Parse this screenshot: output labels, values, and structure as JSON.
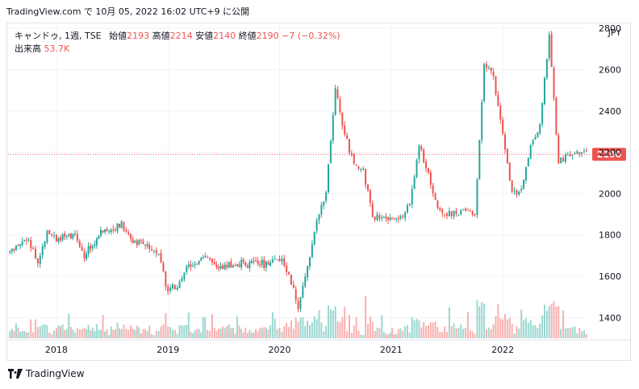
{
  "caption": "TradingView.com で 10月 05, 2022 16:02 UTC+9 に公開",
  "legend": {
    "title": "キャンドゥ, 1週, TSE",
    "open_label": "始値",
    "open": "2193",
    "high_label": "高値",
    "high": "2214",
    "low_label": "安値",
    "low": "2140",
    "close_label": "終値",
    "close": "2190",
    "change": "−7 (−0.32%)",
    "volume_label": "出来高",
    "volume": "53.7K"
  },
  "footer": {
    "brand": "TradingView"
  },
  "colors": {
    "up": "#26a69a",
    "down": "#ef5350",
    "grid": "#f0f3fa",
    "price_line": "#ef5350"
  },
  "chart_data": {
    "type": "candlestick",
    "y_unit": "JPY",
    "ylim": [
      1300,
      2820
    ],
    "y_ticks": [
      "1400",
      "1600",
      "1800",
      "2000",
      "2200",
      "2400",
      "2600",
      "2800"
    ],
    "x_ticks": [
      "2018",
      "2019",
      "2020",
      "2021",
      "2022"
    ],
    "last_price": "2190",
    "grid": true,
    "anchors": [
      [
        "2017-08",
        1720
      ],
      [
        "2017-10",
        1780
      ],
      [
        "2017-11",
        1660
      ],
      [
        "2017-12",
        1820
      ],
      [
        "2018-01",
        1780
      ],
      [
        "2018-03",
        1800
      ],
      [
        "2018-04",
        1700
      ],
      [
        "2018-06",
        1820
      ],
      [
        "2018-08",
        1850
      ],
      [
        "2018-09",
        1780
      ],
      [
        "2018-11",
        1740
      ],
      [
        "2018-12",
        1700
      ],
      [
        "2019-01",
        1530
      ],
      [
        "2019-02",
        1550
      ],
      [
        "2019-03",
        1640
      ],
      [
        "2019-05",
        1700
      ],
      [
        "2019-06",
        1640
      ],
      [
        "2019-08",
        1650
      ],
      [
        "2019-10",
        1670
      ],
      [
        "2019-12",
        1660
      ],
      [
        "2020-01",
        1680
      ],
      [
        "2020-02",
        1620
      ],
      [
        "2020-03",
        1440
      ],
      [
        "2020-04",
        1650
      ],
      [
        "2020-05",
        1880
      ],
      [
        "2020-06",
        2000
      ],
      [
        "2020-07",
        2500
      ],
      [
        "2020-08",
        2280
      ],
      [
        "2020-09",
        2150
      ],
      [
        "2020-10",
        2100
      ],
      [
        "2020-11",
        1900
      ],
      [
        "2020-12",
        1880
      ],
      [
        "2021-02",
        1880
      ],
      [
        "2021-03",
        1950
      ],
      [
        "2021-04",
        2230
      ],
      [
        "2021-05",
        2100
      ],
      [
        "2021-06",
        1930
      ],
      [
        "2021-07",
        1900
      ],
      [
        "2021-08",
        1900
      ],
      [
        "2021-09",
        1920
      ],
      [
        "2021-10",
        1890
      ],
      [
        "2021-11",
        2630
      ],
      [
        "2021-12",
        2560
      ],
      [
        "2022-01",
        2280
      ],
      [
        "2022-02",
        2000
      ],
      [
        "2022-03",
        2030
      ],
      [
        "2022-04",
        2230
      ],
      [
        "2022-05",
        2330
      ],
      [
        "2022-06",
        2760
      ],
      [
        "2022-07",
        2150
      ],
      [
        "2022-08",
        2190
      ],
      [
        "2022-09",
        2200
      ],
      [
        "2022-10",
        2190
      ]
    ]
  }
}
